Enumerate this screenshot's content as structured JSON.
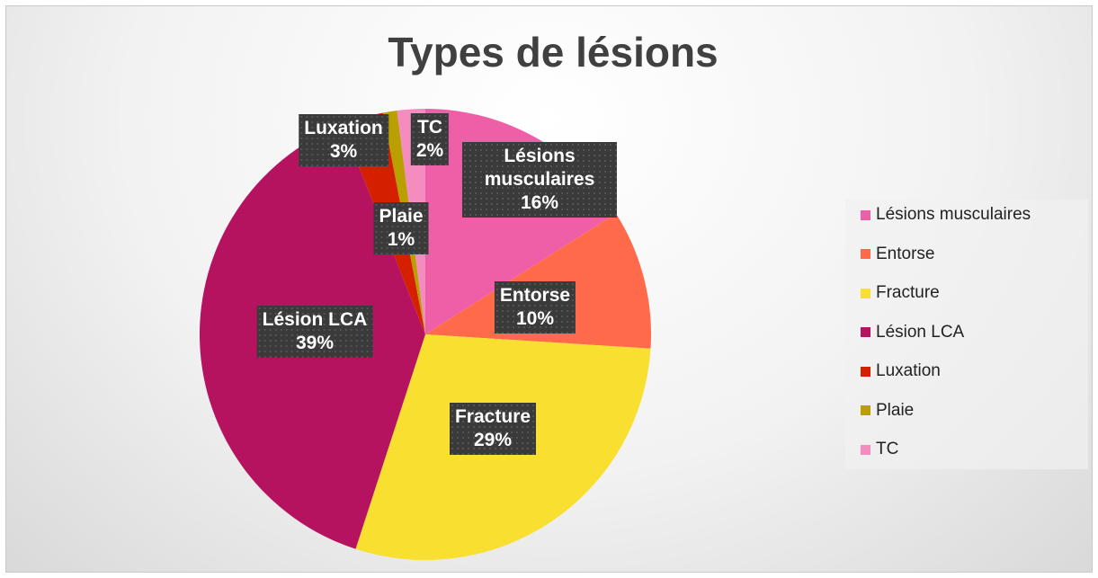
{
  "chart_data": {
    "type": "pie",
    "title": "Types de lésions",
    "categories": [
      "Lésions musculaires",
      "Entorse",
      "Fracture",
      "Lésion LCA",
      "Luxation",
      "Plaie",
      "TC"
    ],
    "values": [
      16,
      10,
      29,
      39,
      3,
      1,
      2
    ],
    "value_labels": [
      "16%",
      "10%",
      "29%",
      "39%",
      "3%",
      "1%",
      "2%"
    ],
    "colors": [
      "#ee5fa7",
      "#ff6b4a",
      "#f9e030",
      "#b5135f",
      "#d52000",
      "#b9a000",
      "#f48cc0"
    ],
    "legend": "right"
  }
}
